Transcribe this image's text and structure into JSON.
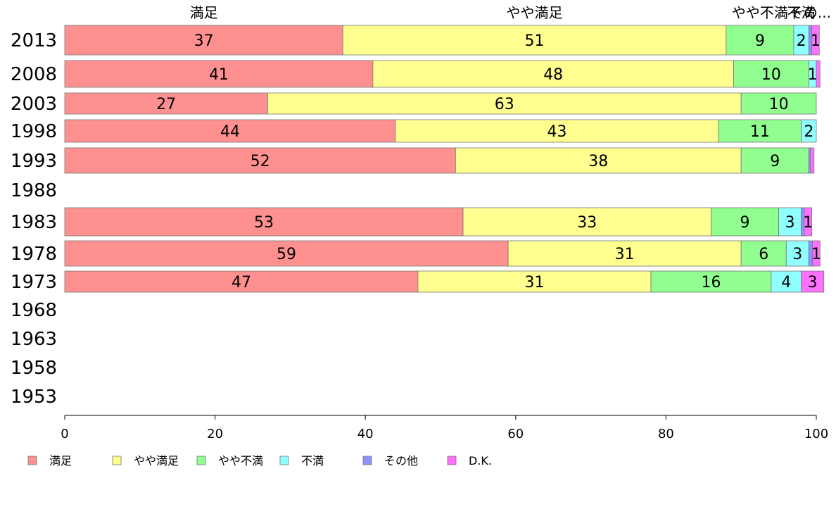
{
  "chart_data": {
    "type": "bar",
    "orientation": "horizontal",
    "stacked": true,
    "categories": [
      "2013",
      "2008",
      "2003",
      "1998",
      "1993",
      "1988",
      "1983",
      "1978",
      "1973",
      "1968",
      "1963",
      "1958",
      "1953"
    ],
    "series": [
      {
        "name": "満足",
        "color": "#ff9090",
        "values": [
          37,
          41,
          27,
          44,
          52,
          null,
          53,
          59,
          47,
          null,
          null,
          null,
          null
        ]
      },
      {
        "name": "やや満足",
        "color": "#ffff90",
        "values": [
          51,
          48,
          63,
          43,
          38,
          null,
          33,
          31,
          31,
          null,
          null,
          null,
          null
        ]
      },
      {
        "name": "やや不満",
        "color": "#90ff90",
        "values": [
          9,
          10,
          10,
          11,
          9,
          null,
          9,
          6,
          16,
          null,
          null,
          null,
          null
        ]
      },
      {
        "name": "不満",
        "color": "#90ffff",
        "values": [
          2,
          1,
          0,
          2,
          0,
          null,
          3,
          3,
          4,
          null,
          null,
          null,
          null
        ]
      },
      {
        "name": "その他",
        "color": "#9090ff",
        "values": [
          0.4,
          0,
          0,
          0,
          0.2,
          null,
          0.4,
          0.5,
          0,
          null,
          null,
          null,
          null
        ]
      },
      {
        "name": "D.K.",
        "color": "#ff70ff",
        "values": [
          1,
          0.5,
          0,
          0,
          0.5,
          null,
          1,
          1,
          3,
          null,
          null,
          null,
          null
        ]
      }
    ],
    "top_labels": [
      "満足",
      "やや満足",
      "やや不満",
      "不満",
      "その..."
    ],
    "x_ticks": [
      0,
      20,
      40,
      60,
      80,
      100
    ],
    "xlim": [
      0,
      100
    ],
    "title": "",
    "xlabel": "",
    "ylabel": "",
    "grid": false,
    "legend_position": "bottom"
  }
}
